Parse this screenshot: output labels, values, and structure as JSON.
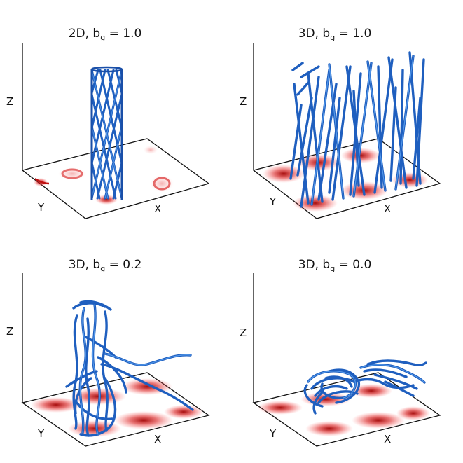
{
  "panels": [
    {
      "id": "2d-bg-1",
      "title_prefix": "2D, b",
      "title_sub": "g",
      "title_suffix": " = 1.0",
      "axis_z": "Z",
      "axis_y": "Y",
      "axis_x": "X"
    },
    {
      "id": "3d-bg-1",
      "title_prefix": "3D, b",
      "title_sub": "g",
      "title_suffix": " = 1.0",
      "axis_z": "Z",
      "axis_y": "Y",
      "axis_x": "X"
    },
    {
      "id": "3d-bg-0.2",
      "title_prefix": "3D, b",
      "title_sub": "g",
      "title_suffix": " = 0.2",
      "axis_z": "Z",
      "axis_y": "Y",
      "axis_x": "X"
    },
    {
      "id": "3d-bg-0",
      "title_prefix": "3D, b",
      "title_sub": "g",
      "title_suffix": " = 0.0",
      "axis_z": "Z",
      "axis_y": "Y",
      "axis_x": "X"
    }
  ],
  "colors": {
    "field_lines": "#1f5fbf",
    "field_highlight": "#5aa0f0",
    "current_density": "#cc1010",
    "axes": "#111111"
  }
}
